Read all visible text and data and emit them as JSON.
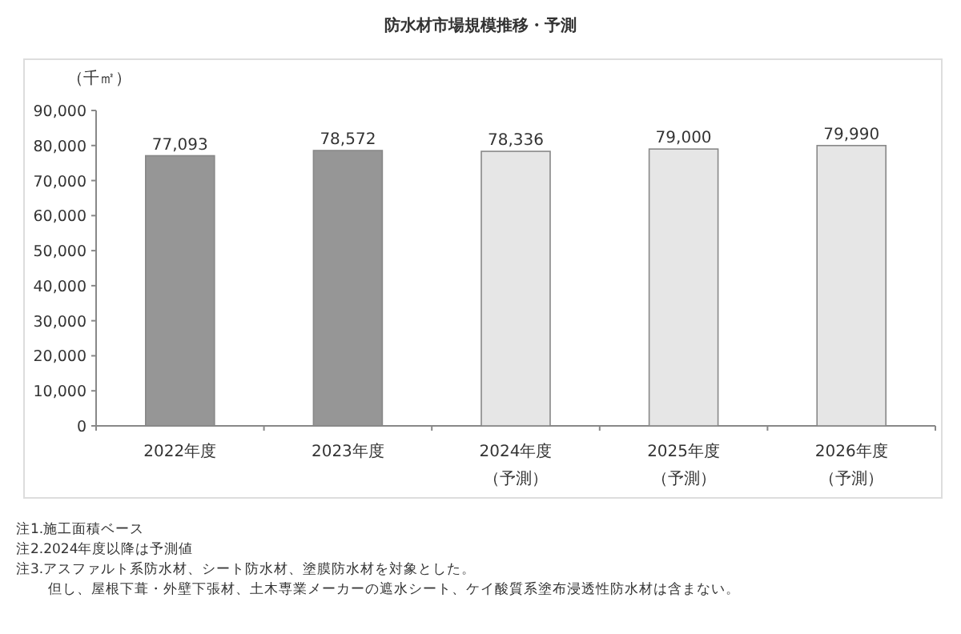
{
  "chart_data": {
    "type": "bar",
    "title": "防水材市場規模推移・予測",
    "ylabel": "（千㎡）",
    "categories": [
      "2022年度",
      "2023年度",
      "2024年度（予測）",
      "2025年度（予測）",
      "2026年度（予測）"
    ],
    "values": [
      77093,
      78572,
      78336,
      79000,
      79990
    ],
    "colors": [
      "#969696",
      "#969696",
      "#e6e6e6",
      "#e6e6e6",
      "#e6e6e6"
    ],
    "ylim": [
      0,
      90000
    ],
    "yticks": [
      0,
      {
        "value": 10000,
        "label": "10,000"
      },
      {
        "value": 20000,
        "label": "20,000"
      },
      {
        "value": 30000,
        "label": "30,000"
      },
      {
        "value": 40000,
        "label": "40,000"
      },
      {
        "value": 50000,
        "label": "50,000"
      },
      {
        "value": 60000,
        "label": "60,000"
      },
      {
        "value": 70000,
        "label": "70,000"
      },
      {
        "value": 80000,
        "label": "80,000"
      },
      {
        "value": 90000,
        "label": "90,000"
      }
    ],
    "value_labels": [
      "77,093",
      "78,572",
      "78,336",
      "79,000",
      "79,990"
    ],
    "annotations": [
      "注1.施工面積ベース",
      "注2.2024年度以降は予測値",
      "注3.アスファルト系防水材、シート防水材、塗膜防水材を対象とした。",
      "但し、屋根下葺・外壁下張材、土木専業メーカーの遮水シート、ケイ酸質系塗布浸透性防水材は含まない。"
    ]
  }
}
